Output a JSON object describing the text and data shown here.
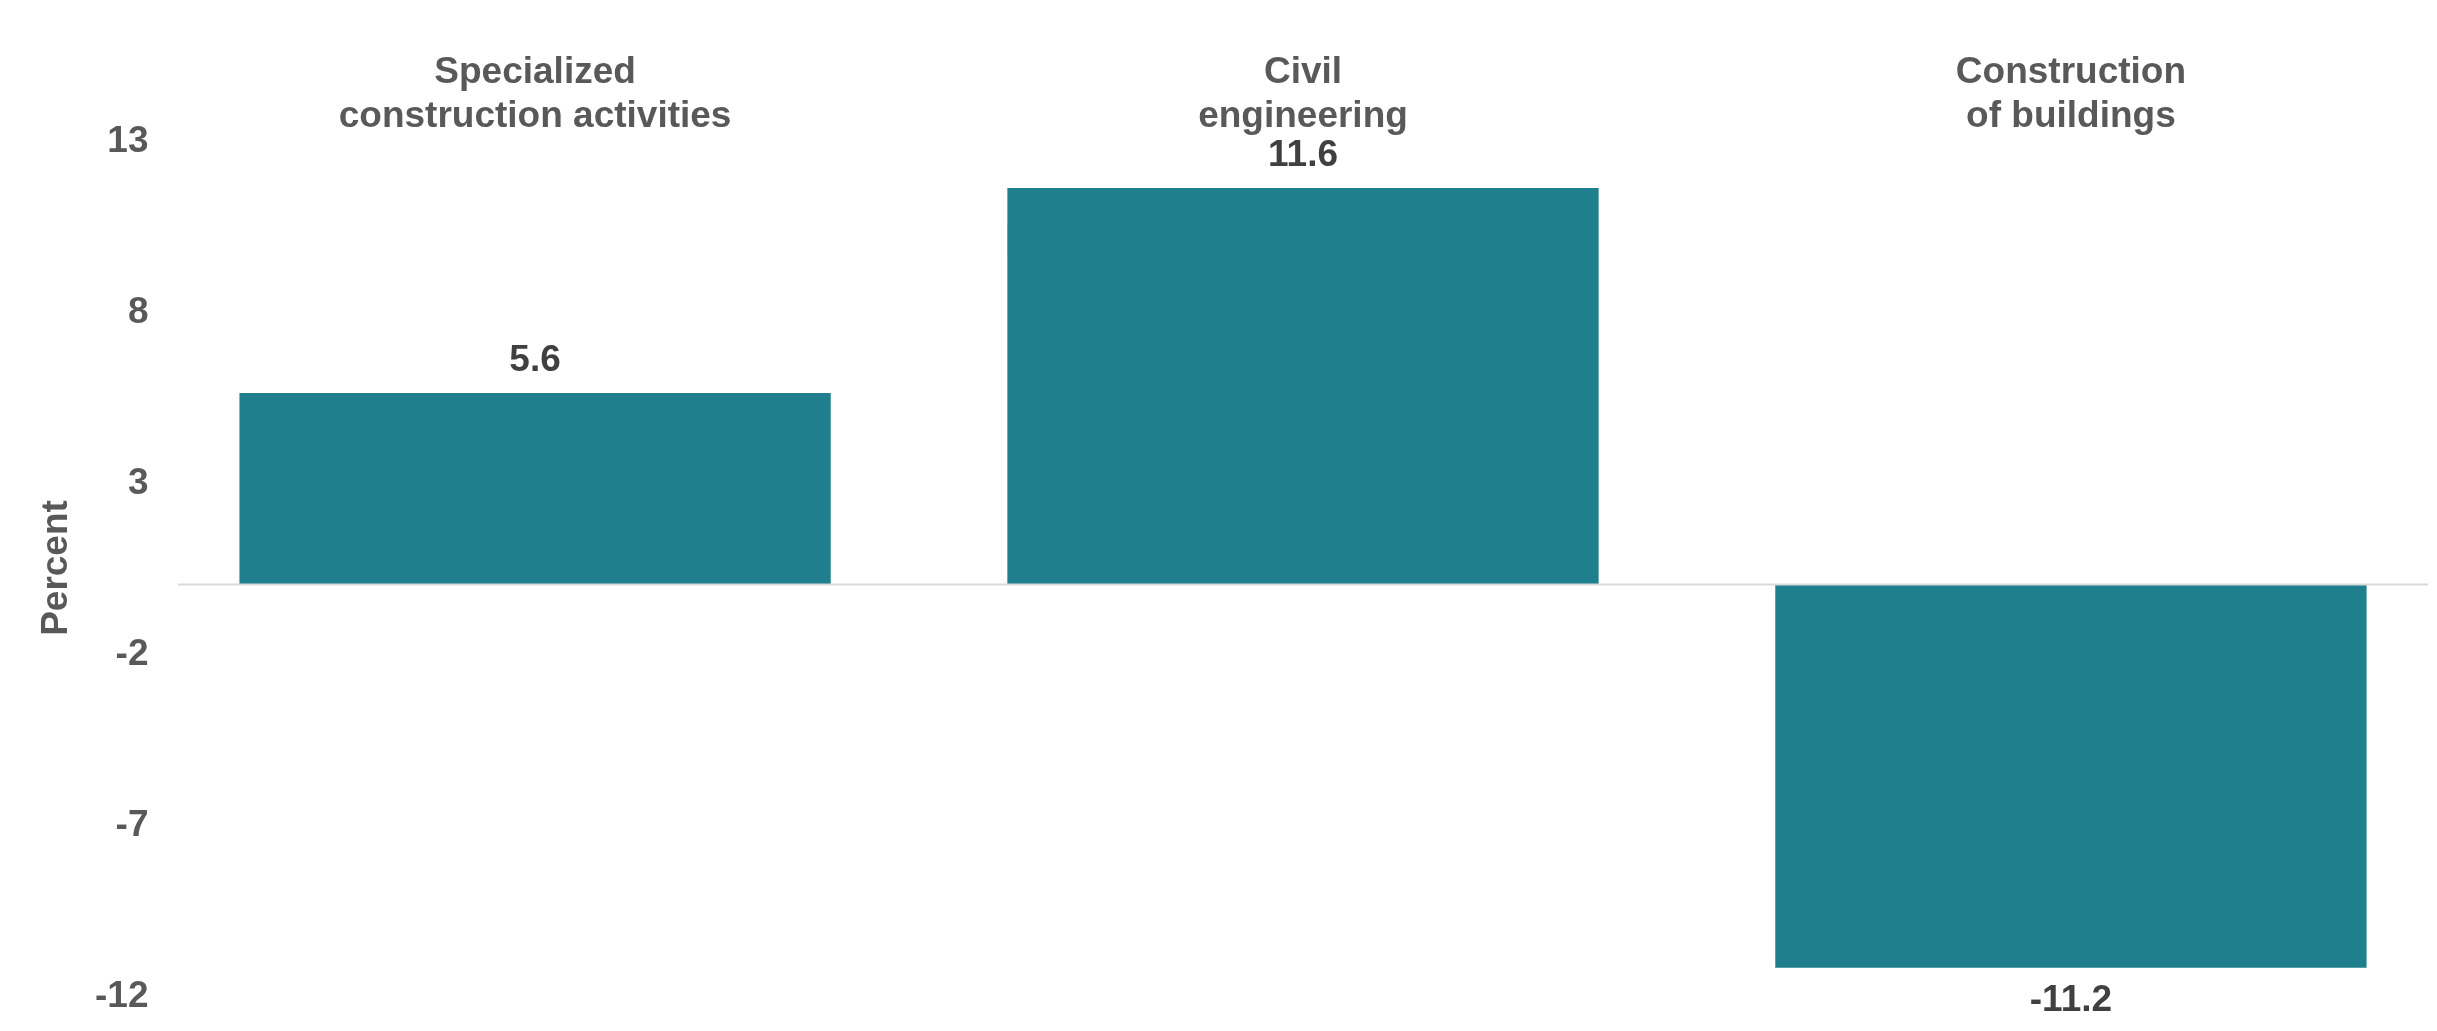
{
  "chart_data": {
    "type": "bar",
    "ylabel": "Percent",
    "categories": [
      "Specialized construction activities",
      "Civil engineering",
      "Construction of buildings"
    ],
    "values": [
      5.6,
      11.6,
      -11.2
    ],
    "color": "#1f7f8c",
    "ylim": [
      -12,
      13
    ],
    "yticks": [
      13,
      8,
      3,
      -2,
      -7,
      -12
    ],
    "grid": false,
    "data_labels": true
  }
}
